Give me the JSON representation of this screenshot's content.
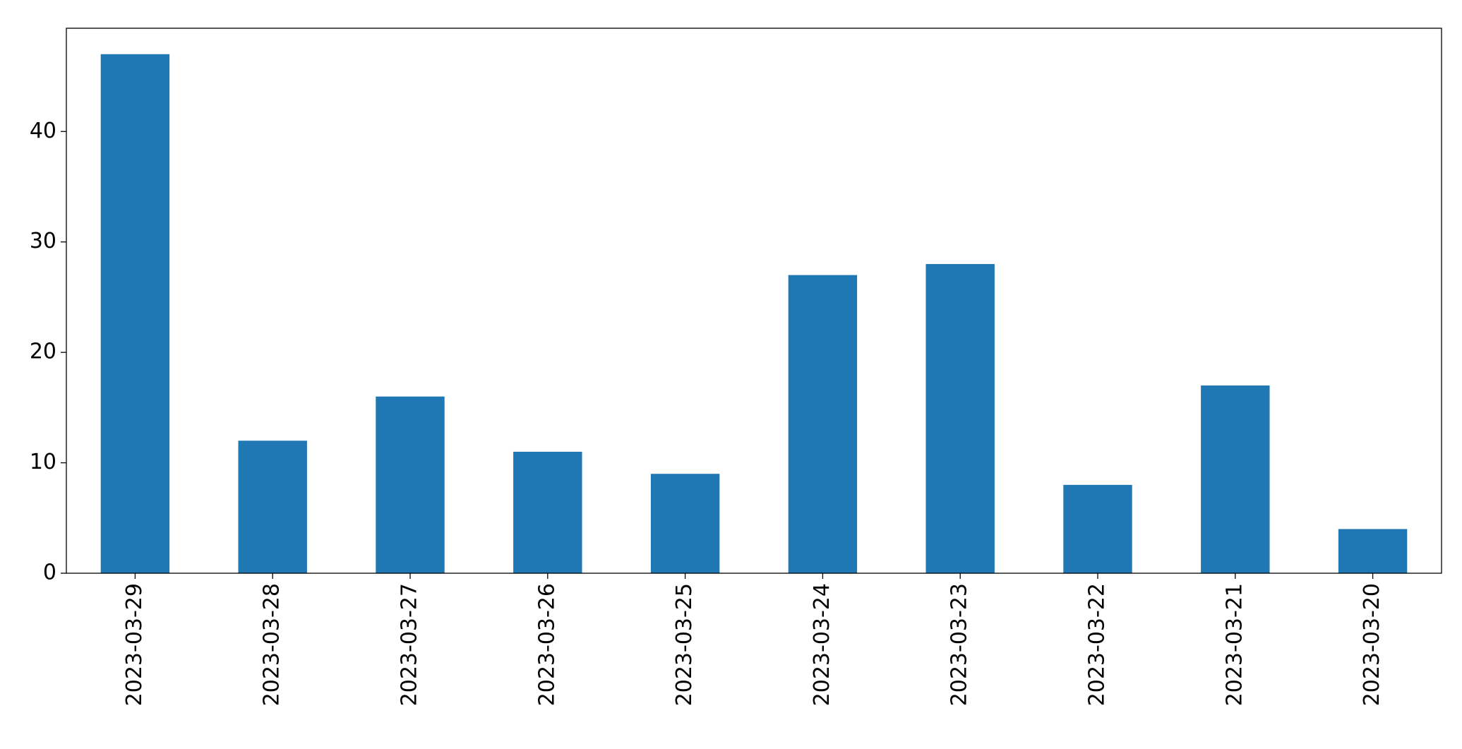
{
  "chart_data": {
    "type": "bar",
    "categories": [
      "2023-03-29",
      "2023-03-28",
      "2023-03-27",
      "2023-03-26",
      "2023-03-25",
      "2023-03-24",
      "2023-03-23",
      "2023-03-22",
      "2023-03-21",
      "2023-03-20"
    ],
    "values": [
      47,
      12,
      16,
      11,
      9,
      27,
      28,
      8,
      17,
      4
    ],
    "color": "#1f77b4",
    "ylim": [
      0,
      49.35
    ],
    "yticks": [
      0,
      10,
      20,
      30,
      40
    ],
    "grid": false
  }
}
